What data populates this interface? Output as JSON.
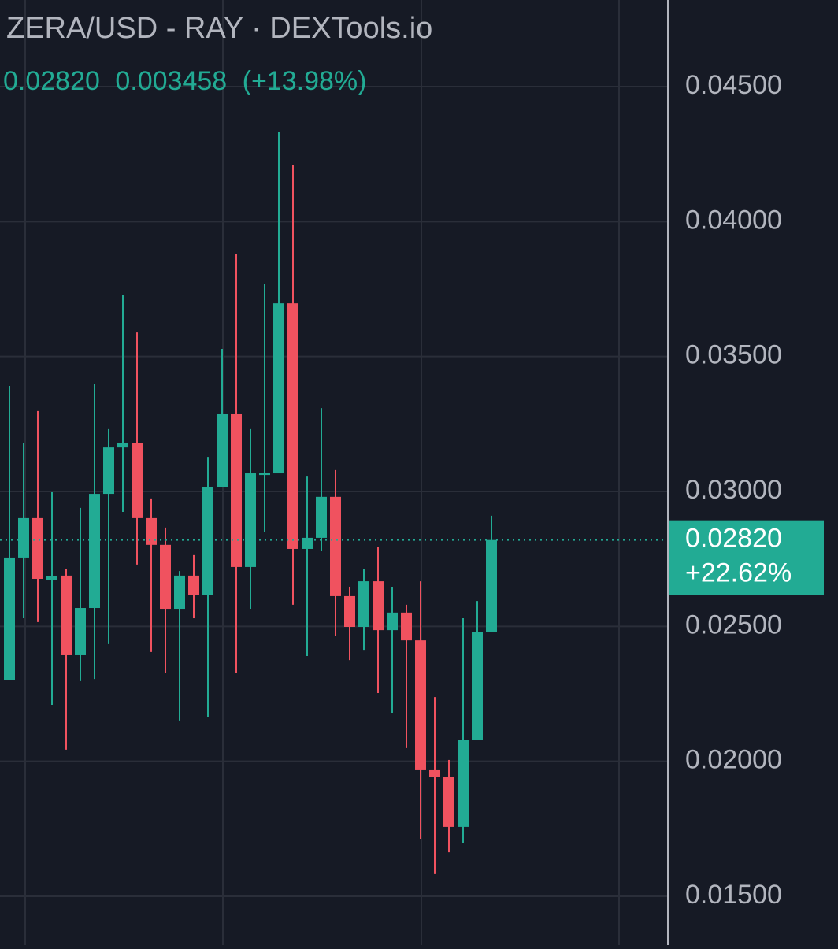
{
  "chart_data": {
    "type": "candlestick",
    "title": "ZERA/USD - RAY · DEXTools.io",
    "header_close": "0.02820",
    "header_change": "0.003458",
    "header_change_pct": "(+13.98%)",
    "up_color": "#22ab94",
    "down_color": "#f0525f",
    "grid": true,
    "ylim": [
      0.01319,
      0.04821
    ],
    "yticks": [
      {
        "value": 0.015,
        "label": "0.01500"
      },
      {
        "value": 0.02,
        "label": "0.02000"
      },
      {
        "value": 0.025,
        "label": "0.02500"
      },
      {
        "value": 0.03,
        "label": "0.03000"
      },
      {
        "value": 0.035,
        "label": "0.03500"
      },
      {
        "value": 0.04,
        "label": "0.04000"
      },
      {
        "value": 0.045,
        "label": "0.04500"
      }
    ],
    "current_price": {
      "value": 0.0282,
      "label": "0.02820"
    },
    "current_change": "+22.62%",
    "open": [
      0.02302,
      0.02755,
      0.02901,
      0.02673,
      0.02688,
      0.02393,
      0.02568,
      0.02991,
      0.03163,
      0.03178,
      0.02901,
      0.02802,
      0.02565,
      0.02688,
      0.02615,
      0.03017,
      0.03286,
      0.0272,
      0.03061,
      0.03067,
      0.03697,
      0.02787,
      0.02828,
      0.0298,
      0.02612,
      0.02498,
      0.02667,
      0.02486,
      0.02551,
      0.02448,
      0.01967,
      0.01941,
      0.01757,
      0.02078,
      0.02478
    ],
    "high": [
      0.03391,
      0.03181,
      0.03298,
      0.02997,
      0.02711,
      0.02939,
      0.03397,
      0.03231,
      0.03727,
      0.03589,
      0.02974,
      0.02866,
      0.02705,
      0.02764,
      0.03128,
      0.03528,
      0.03881,
      0.03231,
      0.0377,
      0.04331,
      0.04208,
      0.03055,
      0.03309,
      0.03079,
      0.02647,
      0.02714,
      0.02793,
      0.02647,
      0.0258,
      0.02667,
      0.02238,
      0.02005,
      0.0253,
      0.02594,
      0.0291
    ],
    "low": [
      0.02302,
      0.0253,
      0.02516,
      0.02209,
      0.02043,
      0.02297,
      0.02305,
      0.02434,
      0.02924,
      0.02729,
      0.02405,
      0.02326,
      0.02151,
      0.0253,
      0.02165,
      0.03017,
      0.02326,
      0.02565,
      0.02851,
      0.03067,
      0.0258,
      0.0239,
      0.02778,
      0.02463,
      0.02375,
      0.02413,
      0.02253,
      0.0218,
      0.02049,
      0.01713,
      0.01582,
      0.01663,
      0.01698,
      0.02078,
      0.02478
    ],
    "close": [
      0.02755,
      0.02901,
      0.02676,
      0.02685,
      0.02393,
      0.02568,
      0.02991,
      0.03163,
      0.03178,
      0.02901,
      0.02802,
      0.02565,
      0.02688,
      0.02615,
      0.03017,
      0.03286,
      0.0272,
      0.03067,
      0.0307,
      0.03697,
      0.02787,
      0.02828,
      0.0298,
      0.02612,
      0.02498,
      0.02667,
      0.02486,
      0.02551,
      0.02448,
      0.01967,
      0.01941,
      0.01757,
      0.02078,
      0.02478,
      0.0282
    ]
  }
}
